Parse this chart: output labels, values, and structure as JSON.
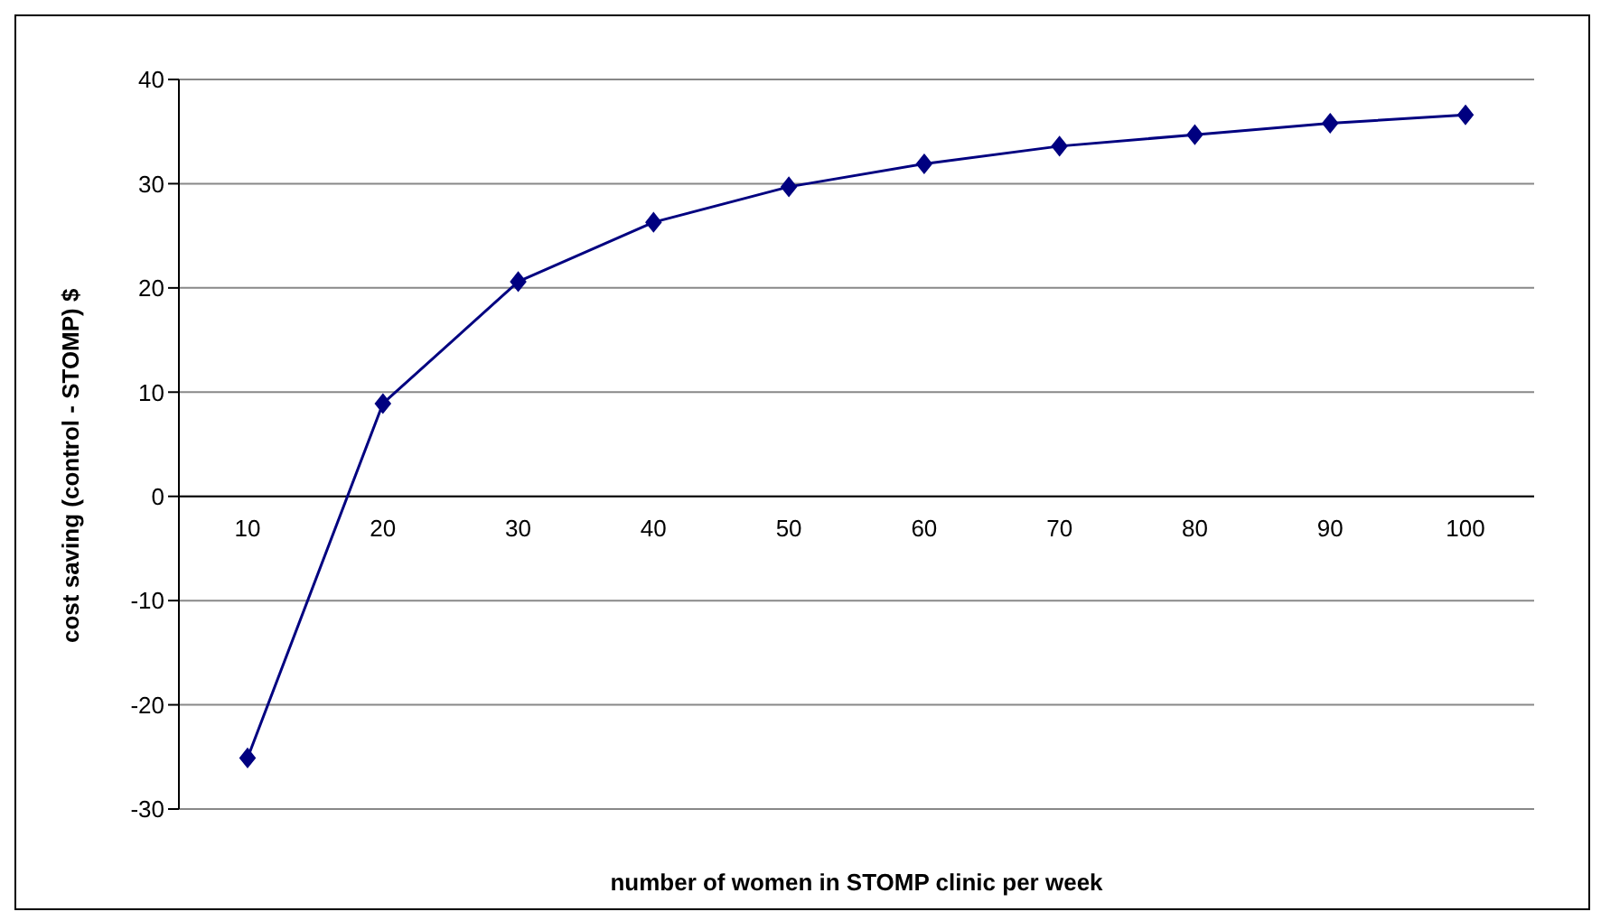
{
  "chart_data": {
    "type": "line",
    "xlabel": "number of women in STOMP clinic per week",
    "ylabel": "cost saving (control - STOMP) $",
    "categories": [
      "10",
      "20",
      "30",
      "40",
      "50",
      "60",
      "70",
      "80",
      "90",
      "100"
    ],
    "series": [
      {
        "color": "#000080",
        "values": [
          -25.1,
          8.9,
          20.6,
          26.3,
          29.7,
          31.9,
          33.6,
          34.7,
          35.8,
          36.6
        ]
      }
    ],
    "ylim": [
      -30,
      40
    ],
    "yticks": [
      -30,
      -20,
      -10,
      0,
      10,
      20,
      30,
      40
    ],
    "grid": "y",
    "marker": "diamond",
    "legend": false
  }
}
